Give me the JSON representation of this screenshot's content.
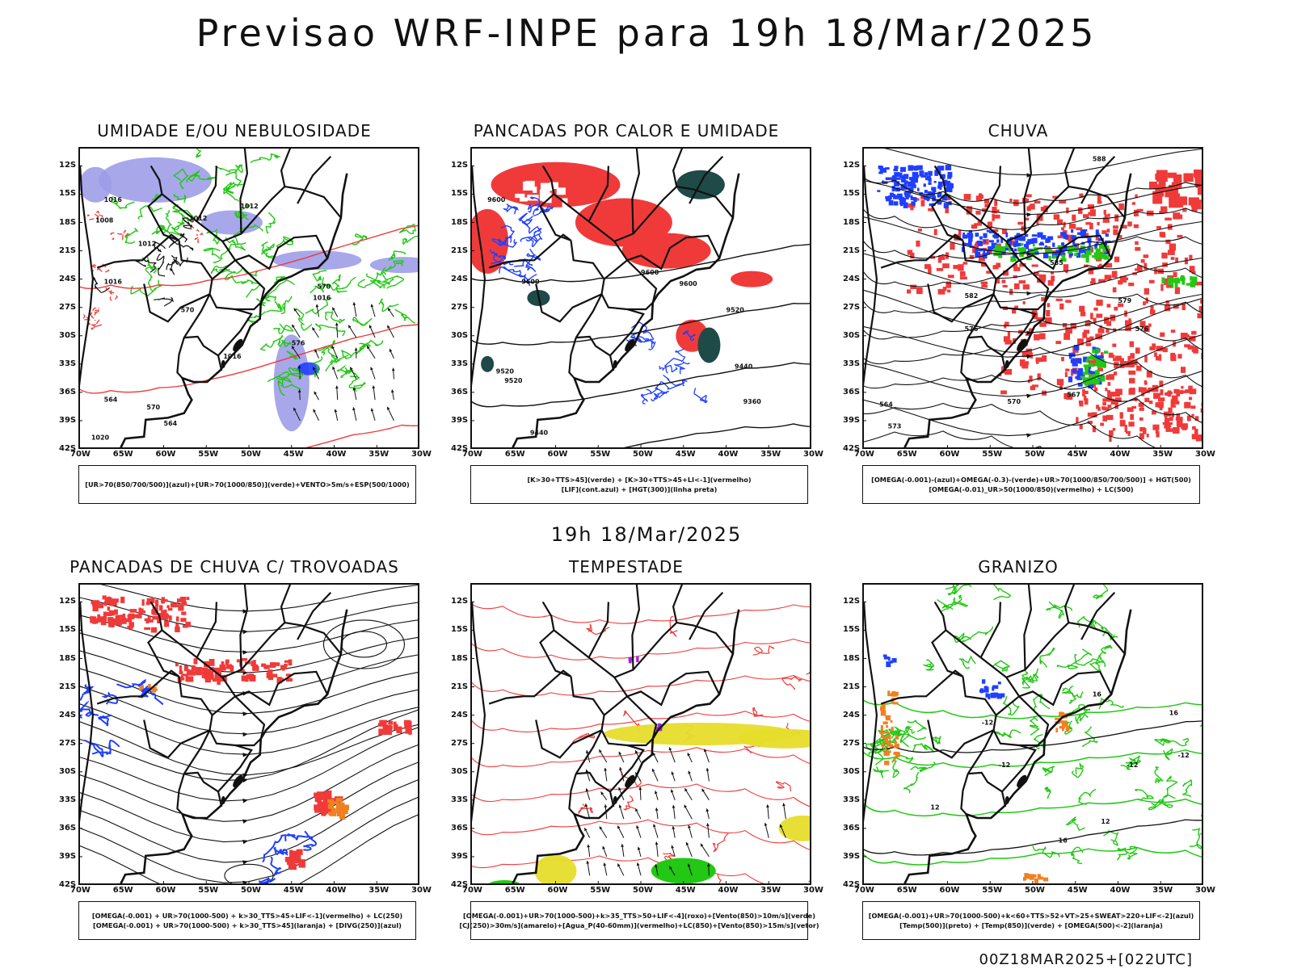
{
  "header": {
    "title": "Previsao WRF-INPE  para 19h 18/Mar/2025",
    "mid_title": "19h 18/Mar/2025",
    "footer": "00Z18MAR2025+[022UTC]"
  },
  "axes": {
    "lat_labels": [
      "12S",
      "15S",
      "18S",
      "21S",
      "24S",
      "27S",
      "30S",
      "33S",
      "36S",
      "39S",
      "42S"
    ],
    "lon_labels": [
      "70W",
      "65W",
      "60W",
      "55W",
      "50W",
      "45W",
      "40W",
      "35W",
      "30W"
    ]
  },
  "colors": {
    "blue": "#1f3fff",
    "green": "#22c814",
    "red": "#f03a3a",
    "lavender": "#9d9de8",
    "darkteal": "#1e4a48",
    "yellow": "#e6dd2a",
    "orange": "#f08020",
    "purple": "#a020f0",
    "black": "#111111"
  },
  "panels": [
    {
      "title": "UMIDADE E/OU NEBULOSIDADE",
      "desc": [
        "[UR>70(850/700/500)](azul)+[UR>70(1000/850)](verde)+VENTO>5m/s+ESP(500/1000)"
      ],
      "contour_labels": [
        "1012",
        "1012",
        "1012",
        "1016",
        "1016",
        "1016",
        "1016",
        "1008",
        "1020",
        "570",
        "570",
        "570",
        "564",
        "564",
        "576"
      ]
    },
    {
      "title": "PANCADAS POR CALOR E UMIDADE",
      "desc": [
        "[K>30+TTS>45](verde) + [K>30+TTS>45+LI<-1](vermelho)",
        "[LIF](cont.azul) + [HGT(300)](linha preta)"
      ],
      "contour_labels": [
        "9600",
        "9600",
        "9600",
        "9600",
        "9520",
        "9520",
        "9520",
        "9440",
        "9440",
        "9360"
      ]
    },
    {
      "title": "CHUVA",
      "desc": [
        "[OMEGA(-0.001)-(azul)+OMEGA(-0.3)-(verde)+UR>70(1000/850/700/500)] + HGT(500)",
        "[OMEGA(-0.01)_UR>50(1000/850)(vermelho) + LC(500)"
      ],
      "contour_labels": [
        "588",
        "585",
        "582",
        "579",
        "576",
        "576",
        "573",
        "570",
        "567",
        "564"
      ]
    },
    {
      "title": "PANCADAS DE CHUVA C/ TROVOADAS",
      "desc": [
        "[OMEGA(-0.001) + UR>70(1000-500) + k>30_TTS>45+LIF<-1](vermelho) + LC(250)",
        "[OMEGA(-0.001) + UR>70(1000-500) + k>30_TTS>45](laranja) + [DIVG(250)](azul)"
      ],
      "contour_labels": []
    },
    {
      "title": "TEMPESTADE",
      "desc": [
        "[OMEGA(-0.001)+UR>70(1000-500)+k>35_TTS>50+LIF<-4](roxo)+[Vento(850)>10m/s](verde)",
        "[CJ(250)>30m/s](amarelo)+[Agua_P(40-60mm)](vermelho)+LC(850)+[Vento(850)>15m/s](vetor)"
      ],
      "contour_labels": []
    },
    {
      "title": "GRANIZO",
      "desc": [
        "[OMEGA(-0.001)+UR>70(1000-500)+k<60+TTS>52+VT>25+SWEAT>220+LIF<-2](azul)",
        "[Temp(500)](preto) + [Temp(850)](verde) + [OMEGA(500)<-2](laranja)"
      ],
      "contour_labels": [
        "-12",
        "-12",
        "-12",
        "-12",
        "12",
        "12",
        "16",
        "16",
        "16"
      ]
    }
  ]
}
